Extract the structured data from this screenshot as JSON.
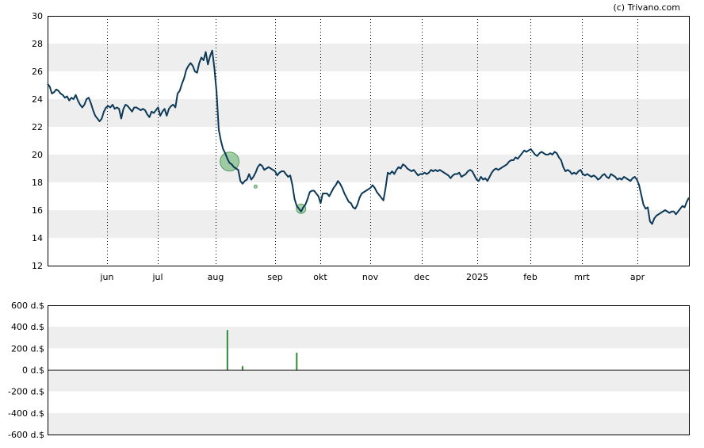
{
  "copyright": "(c) Trivano.com",
  "chart_data": [
    {
      "type": "line",
      "x_ticks": [
        "jun",
        "jul",
        "aug",
        "sep",
        "okt",
        "nov",
        "dec",
        "2025",
        "feb",
        "mrt",
        "apr"
      ],
      "y_ticks": [
        "30",
        "28",
        "26",
        "24",
        "22",
        "20",
        "18",
        "16",
        "14",
        "12"
      ],
      "ylim": [
        12,
        30
      ],
      "grid": "vertical dotted at month ticks, alternating horizontal bands",
      "line_color": "#0d3a58",
      "band_color": "#eeeeee",
      "series": [
        {
          "values": [
            25.1,
            24.9,
            24.4,
            24.5,
            24.7,
            24.6,
            24.4,
            24.3,
            24.1,
            24.2,
            23.9,
            24.1,
            24.0,
            24.3,
            23.9,
            23.6,
            23.4,
            23.6,
            24.0,
            24.1,
            23.7,
            23.2,
            22.8,
            22.6,
            22.4,
            22.6,
            23.1,
            23.4,
            23.5,
            23.4,
            23.6,
            23.3,
            23.4,
            23.3,
            22.6,
            23.3,
            23.6,
            23.5,
            23.3,
            23.1,
            23.4,
            23.4,
            23.3,
            23.2,
            23.3,
            23.2,
            22.9,
            22.7,
            23.1,
            23.0,
            23.2,
            23.4,
            22.8,
            23.1,
            23.3,
            22.8,
            23.3,
            23.5,
            23.6,
            23.4,
            24.4,
            24.6,
            25.1,
            25.5,
            26.1,
            26.4,
            26.6,
            26.4,
            26.0,
            25.9,
            26.6,
            27.0,
            26.8,
            27.4,
            26.5,
            27.1,
            27.5,
            26.2,
            24.5,
            21.8,
            21.0,
            20.4,
            20.1,
            19.7,
            19.4,
            19.3,
            19.1,
            19.0,
            18.9,
            18.1,
            17.9,
            18.1,
            18.2,
            18.6,
            18.2,
            18.4,
            18.7,
            19.1,
            19.3,
            19.2,
            18.9,
            19.0,
            19.1,
            19.0,
            18.9,
            18.8,
            18.5,
            18.7,
            18.8,
            18.8,
            18.6,
            18.4,
            18.5,
            17.8,
            16.8,
            16.3,
            16.1,
            15.9,
            16.2,
            16.4,
            16.8,
            17.3,
            17.4,
            17.4,
            17.2,
            17.0,
            16.5,
            17.2,
            17.2,
            17.2,
            17.0,
            17.3,
            17.6,
            17.8,
            18.1,
            17.9,
            17.6,
            17.2,
            16.9,
            16.6,
            16.5,
            16.2,
            16.1,
            16.4,
            16.9,
            17.2,
            17.3,
            17.4,
            17.5,
            17.6,
            17.8,
            17.6,
            17.3,
            17.1,
            16.9,
            16.7,
            17.6,
            18.7,
            18.6,
            18.8,
            18.6,
            18.9,
            19.1,
            19.0,
            19.3,
            19.2,
            19.0,
            18.9,
            18.8,
            18.9,
            18.7,
            18.5,
            18.6,
            18.6,
            18.7,
            18.6,
            18.7,
            18.9,
            18.8,
            18.9,
            18.8,
            18.9,
            18.8,
            18.7,
            18.6,
            18.5,
            18.3,
            18.5,
            18.6,
            18.6,
            18.7,
            18.4,
            18.5,
            18.6,
            18.8,
            18.9,
            18.8,
            18.5,
            18.2,
            18.1,
            18.4,
            18.2,
            18.3,
            18.1,
            18.4,
            18.7,
            18.9,
            19.0,
            18.9,
            19.0,
            19.1,
            19.2,
            19.3,
            19.5,
            19.6,
            19.6,
            19.8,
            19.7,
            19.9,
            20.1,
            20.3,
            20.2,
            20.3,
            20.4,
            20.2,
            20.0,
            19.9,
            20.1,
            20.2,
            20.1,
            20.0,
            20.0,
            20.1,
            20.0,
            20.2,
            20.1,
            19.8,
            19.6,
            19.1,
            18.8,
            18.9,
            18.8,
            18.6,
            18.7,
            18.6,
            18.8,
            18.9,
            18.6,
            18.5,
            18.6,
            18.5,
            18.4,
            18.5,
            18.4,
            18.2,
            18.3,
            18.5,
            18.6,
            18.4,
            18.3,
            18.6,
            18.5,
            18.4,
            18.2,
            18.3,
            18.2,
            18.4,
            18.3,
            18.2,
            18.1,
            18.3,
            18.4,
            18.2,
            17.8,
            17.1,
            16.4,
            16.1,
            16.2,
            15.2,
            15.0,
            15.4,
            15.6,
            15.7,
            15.8,
            15.9,
            16.0,
            15.9,
            15.8,
            15.9,
            15.9,
            15.7,
            15.9,
            16.1,
            16.3,
            16.2,
            16.6,
            16.9
          ]
        }
      ],
      "markers": [
        {
          "index": 84,
          "value": 19.5,
          "size": "large"
        },
        {
          "index": 96,
          "value": 17.7,
          "size": "tiny"
        },
        {
          "index": 117,
          "value": 16.1,
          "size": "small"
        }
      ]
    },
    {
      "type": "bar",
      "y_ticks": [
        "600 d.$",
        "400 d.$",
        "200 d.$",
        "0 d.$",
        "-200 d.$",
        "-400 d.$",
        "-600 d.$"
      ],
      "ylim": [
        -600,
        600
      ],
      "bar_color": "#2e8b3a",
      "band_color": "#eeeeee",
      "bars": [
        {
          "index": 83,
          "value": 370
        },
        {
          "index": 90,
          "value": 35
        },
        {
          "index": 115,
          "value": 160
        }
      ]
    }
  ]
}
